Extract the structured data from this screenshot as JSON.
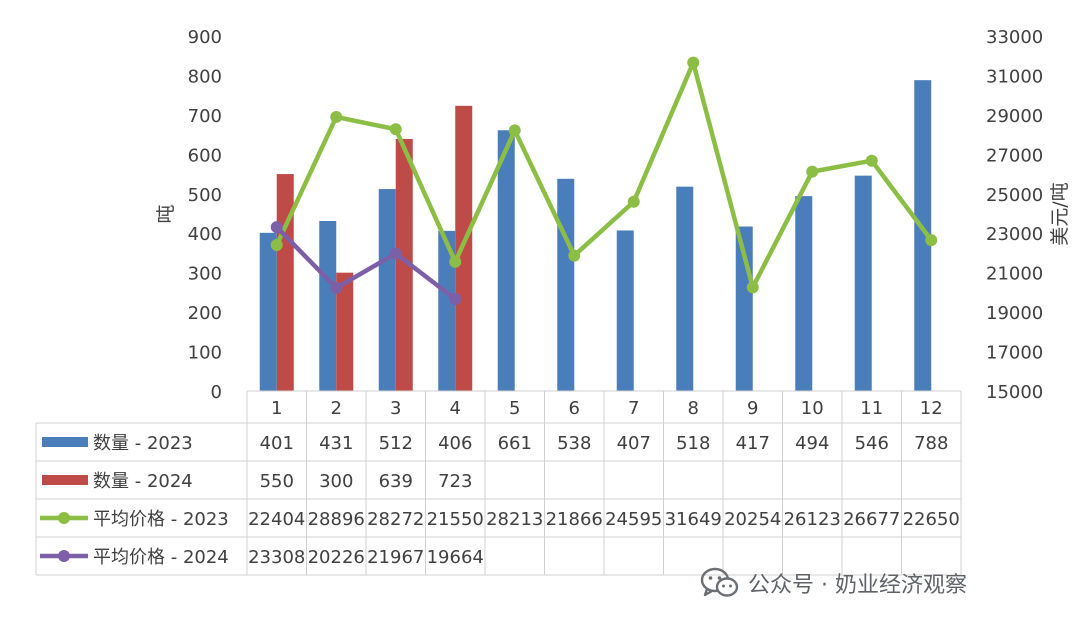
{
  "chart_data": {
    "type": "bar",
    "categories": [
      "1",
      "2",
      "3",
      "4",
      "5",
      "6",
      "7",
      "8",
      "9",
      "10",
      "11",
      "12"
    ],
    "series": [
      {
        "name": "数量 - 2023",
        "kind": "bar",
        "axis": "left",
        "color": "#4a7ebb",
        "values": [
          401,
          431,
          512,
          406,
          661,
          538,
          407,
          518,
          417,
          494,
          546,
          788
        ]
      },
      {
        "name": "数量 - 2024",
        "kind": "bar",
        "axis": "left",
        "color": "#be4b48",
        "values": [
          550,
          300,
          639,
          723,
          null,
          null,
          null,
          null,
          null,
          null,
          null,
          null
        ]
      },
      {
        "name": "平均价格 - 2023",
        "kind": "line",
        "axis": "right",
        "color": "#8cbe46",
        "values": [
          22404,
          28896,
          28272,
          21550,
          28213,
          21866,
          24595,
          31649,
          20254,
          26123,
          26677,
          22650
        ]
      },
      {
        "name": "平均价格 - 2024",
        "kind": "line",
        "axis": "right",
        "color": "#7d5fa8",
        "values": [
          23308,
          20226,
          21967,
          19664,
          null,
          null,
          null,
          null,
          null,
          null,
          null,
          null
        ]
      }
    ],
    "ylabel": "吨",
    "y2label": "美元/吨",
    "ylim": [
      0,
      900
    ],
    "y_ticks": [
      0,
      100,
      200,
      300,
      400,
      500,
      600,
      700,
      800,
      900
    ],
    "y2lim": [
      15000,
      33000
    ],
    "y2_ticks": [
      15000,
      17000,
      19000,
      21000,
      23000,
      25000,
      27000,
      29000,
      31000,
      33000
    ],
    "grid": false,
    "legend": "data-table"
  },
  "watermark": {
    "text": "公众号 · 奶业经济观察",
    "icon": "wechat-icon"
  }
}
